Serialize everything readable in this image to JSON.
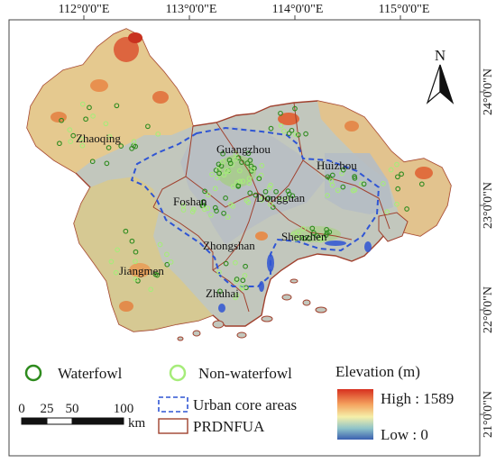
{
  "map": {
    "longitude_labels": [
      "112°0'0\"E",
      "113°0'0\"E",
      "114°0'0\"E",
      "115°0'0\"E"
    ],
    "latitude_labels": [
      "24°0'0\"N",
      "23°0'0\"N",
      "22°0'0\"N",
      "21°0'0\"N"
    ],
    "north_arrow_label": "N",
    "cities": [
      "Zhaoqing",
      "Guangzhou",
      "Huizhou",
      "Foshan",
      "Dongguan",
      "Zhongshan",
      "Shenzhen",
      "Jiangmen",
      "Zhuhai"
    ]
  },
  "legend": {
    "waterfowl_label": "Waterfowl",
    "non_waterfowl_label": "Non-waterfowl",
    "urban_core_label": "Urban core areas",
    "prdnfua_label": "PRDNFUA",
    "elevation_title": "Elevation (m)",
    "elevation_high": "High : 1589",
    "elevation_low": "Low : 0",
    "colors": {
      "waterfowl": "#2e8b1e",
      "non_waterfowl": "#a6ec7a",
      "urban_core": "#2f55d4",
      "prdnfua": "#a0412e"
    }
  },
  "scale_bar": {
    "ticks": [
      "0",
      "25",
      "50",
      "100"
    ],
    "unit": "km"
  }
}
